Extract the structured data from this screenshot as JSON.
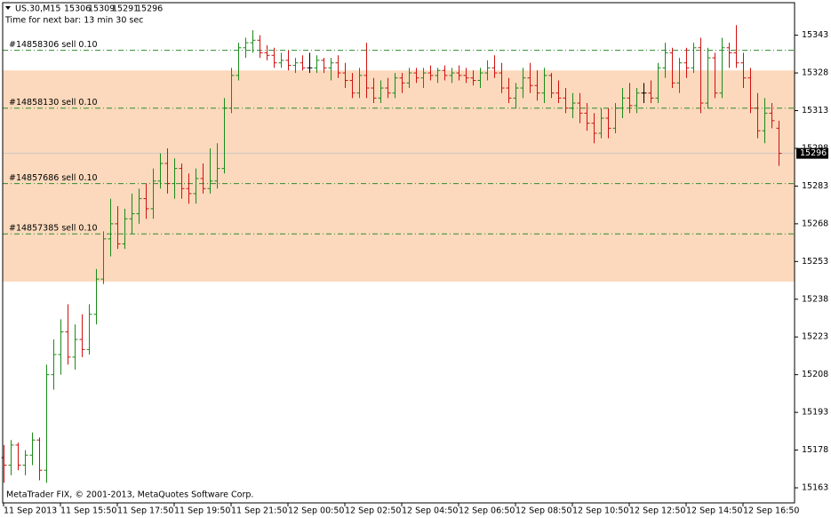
{
  "chart_data": {
    "type": "ohlc",
    "title": "US.30,M15",
    "subtitle": "Time for next bar: 13 min 30 sec",
    "footer": "MetaTrader FIX, © 2001-2013, MetaQuotes Software Corp.",
    "categories": [
      "11 Sep 2013",
      null,
      null,
      null,
      null,
      null,
      null,
      null,
      "11 Sep 15:50",
      null,
      null,
      null,
      null,
      null,
      null,
      null,
      "11 Sep 17:50",
      null,
      null,
      null,
      null,
      null,
      null,
      null,
      "11 Sep 19:50",
      null,
      null,
      null,
      null,
      null,
      null,
      null,
      "11 Sep 21:50",
      null,
      null,
      null,
      null,
      null,
      null,
      null,
      "12 Sep 00:50",
      null,
      null,
      null,
      null,
      null,
      null,
      null,
      "12 Sep 02:50",
      null,
      null,
      null,
      null,
      null,
      null,
      null,
      "12 Sep 04:50",
      null,
      null,
      null,
      null,
      null,
      null,
      null,
      "12 Sep 06:50",
      null,
      null,
      null,
      null,
      null,
      null,
      null,
      "12 Sep 08:50",
      null,
      null,
      null,
      null,
      null,
      null,
      null,
      "12 Sep 10:50",
      null,
      null,
      null,
      null,
      null,
      null,
      null,
      "12 Sep 12:50",
      null,
      null,
      null,
      null,
      null,
      null,
      null,
      "12 Sep 14:50",
      null,
      null,
      null,
      null,
      null,
      null,
      null,
      "12 Sep 16:50",
      null,
      null,
      null,
      null,
      null
    ],
    "values": [
      [
        15175,
        15180,
        15165,
        15172
      ],
      [
        15172,
        15182,
        15168,
        15180
      ],
      [
        15180,
        15181,
        15170,
        15172
      ],
      [
        15172,
        15178,
        15168,
        15176
      ],
      [
        15176,
        15185,
        15172,
        15182
      ],
      [
        15182,
        15183,
        15166,
        15170
      ],
      [
        15170,
        15212,
        15165,
        15208
      ],
      [
        15208,
        15222,
        15202,
        15216
      ],
      [
        15216,
        15230,
        15208,
        15225
      ],
      [
        15225,
        15236,
        15212,
        15215
      ],
      [
        15215,
        15228,
        15210,
        15222
      ],
      [
        15222,
        15232,
        15215,
        15218
      ],
      [
        15218,
        15236,
        15216,
        15232
      ],
      [
        15232,
        15250,
        15228,
        15246
      ],
      [
        15246,
        15265,
        15244,
        15262
      ],
      [
        15262,
        15278,
        15255,
        15268
      ],
      [
        15268,
        15275,
        15258,
        15260
      ],
      [
        15260,
        15274,
        15258,
        15270
      ],
      [
        15270,
        15280,
        15264,
        15272
      ],
      [
        15272,
        15282,
        15268,
        15278
      ],
      [
        15278,
        15284,
        15270,
        15274
      ],
      [
        15274,
        15290,
        15270,
        15285
      ],
      [
        15285,
        15296,
        15282,
        15292
      ],
      [
        15292,
        15298,
        15280,
        15284
      ],
      [
        15284,
        15294,
        15278,
        15290
      ],
      [
        15290,
        15292,
        15278,
        15282
      ],
      [
        15282,
        15288,
        15276,
        15280
      ],
      [
        15280,
        15290,
        15276,
        15286
      ],
      [
        15286,
        15292,
        15280,
        15282
      ],
      [
        15282,
        15298,
        15280,
        15285
      ],
      [
        15285,
        15300,
        15282,
        15290
      ],
      [
        15290,
        15318,
        15288,
        15314
      ],
      [
        15314,
        15330,
        15312,
        15327
      ],
      [
        15327,
        15340,
        15325,
        15338
      ],
      [
        15338,
        15342,
        15334,
        15340
      ],
      [
        15340,
        15345,
        15336,
        15341
      ],
      [
        15341,
        15343,
        15334,
        15336
      ],
      [
        15336,
        15339,
        15333,
        15335
      ],
      [
        15335,
        15338,
        15330,
        15332
      ],
      [
        15332,
        15336,
        15330,
        15333
      ],
      [
        15333,
        15337,
        15329,
        15331
      ],
      [
        15331,
        15334,
        15328,
        15332
      ],
      [
        15332,
        15335,
        15329,
        15330
      ],
      [
        15330,
        15336,
        15328,
        15330
      ],
      [
        15330,
        15335,
        15328,
        15333
      ],
      [
        15333,
        15334,
        15328,
        15330
      ],
      [
        15330,
        15334,
        15325,
        15332
      ],
      [
        15332,
        15335,
        15326,
        15328
      ],
      [
        15328,
        15332,
        15322,
        15325
      ],
      [
        15325,
        15328,
        15318,
        15320
      ],
      [
        15320,
        15330,
        15318,
        15327
      ],
      [
        15327,
        15340,
        15318,
        15322
      ],
      [
        15322,
        15326,
        15316,
        15318
      ],
      [
        15318,
        15325,
        15316,
        15322
      ],
      [
        15322,
        15326,
        15318,
        15320
      ],
      [
        15320,
        15328,
        15318,
        15326
      ],
      [
        15326,
        15328,
        15320,
        15324
      ],
      [
        15324,
        15330,
        15322,
        15328
      ],
      [
        15328,
        15330,
        15324,
        15326
      ],
      [
        15326,
        15330,
        15322,
        15328
      ],
      [
        15328,
        15331,
        15325,
        15327
      ],
      [
        15327,
        15330,
        15324,
        15329
      ],
      [
        15329,
        15331,
        15325,
        15327
      ],
      [
        15327,
        15330,
        15324,
        15328
      ],
      [
        15328,
        15331,
        15325,
        15327
      ],
      [
        15327,
        15330,
        15324,
        15326
      ],
      [
        15326,
        15329,
        15323,
        15325
      ],
      [
        15325,
        15330,
        15322,
        15328
      ],
      [
        15328,
        15333,
        15325,
        15330
      ],
      [
        15330,
        15335,
        15326,
        15328
      ],
      [
        15328,
        15332,
        15320,
        15322
      ],
      [
        15322,
        15326,
        15316,
        15318
      ],
      [
        15318,
        15324,
        15314,
        15322
      ],
      [
        15322,
        15330,
        15318,
        15326
      ],
      [
        15326,
        15332,
        15320,
        15323
      ],
      [
        15323,
        15329,
        15317,
        15320
      ],
      [
        15320,
        15330,
        15316,
        15327
      ],
      [
        15327,
        15328,
        15318,
        15320
      ],
      [
        15320,
        15325,
        15316,
        15318
      ],
      [
        15318,
        15322,
        15312,
        15314
      ],
      [
        15314,
        15320,
        15310,
        15316
      ],
      [
        15316,
        15320,
        15308,
        15312
      ],
      [
        15312,
        15316,
        15305,
        15308
      ],
      [
        15308,
        15312,
        15300,
        15304
      ],
      [
        15304,
        15314,
        15302,
        15310
      ],
      [
        15310,
        15314,
        15302,
        15306
      ],
      [
        15306,
        15316,
        15304,
        15314
      ],
      [
        15314,
        15322,
        15310,
        15318
      ],
      [
        15318,
        15324,
        15312,
        15315
      ],
      [
        15315,
        15322,
        15312,
        15320
      ],
      [
        15320,
        15324,
        15316,
        15320
      ],
      [
        15320,
        15325,
        15316,
        15318
      ],
      [
        15318,
        15332,
        15316,
        15330
      ],
      [
        15330,
        15340,
        15326,
        15336
      ],
      [
        15336,
        15338,
        15322,
        15324
      ],
      [
        15324,
        15334,
        15320,
        15332
      ],
      [
        15332,
        15338,
        15326,
        15330
      ],
      [
        15330,
        15340,
        15328,
        15338
      ],
      [
        15338,
        15342,
        15312,
        15316
      ],
      [
        15316,
        15338,
        15314,
        15334
      ],
      [
        15334,
        15336,
        15318,
        15320
      ],
      [
        15320,
        15342,
        15318,
        15338
      ],
      [
        15338,
        15340,
        15330,
        15336
      ],
      [
        15336,
        15347,
        15330,
        15332
      ],
      [
        15332,
        15336,
        15322,
        15326
      ],
      [
        15326,
        15330,
        15312,
        15314
      ],
      [
        15314,
        15320,
        15302,
        15305
      ],
      [
        15305,
        15318,
        15300,
        15312
      ],
      [
        15312,
        15316,
        15306,
        15309
      ],
      [
        15306,
        15309,
        15291,
        15296
      ]
    ],
    "colors": {
      "up": "#1a8a1a",
      "down": "#d01010",
      "flat": "#000000"
    },
    "ylim": [
      15157,
      15357
    ],
    "yticks": [
      15163,
      15178,
      15193,
      15208,
      15223,
      15238,
      15253,
      15268,
      15283,
      15298,
      15313,
      15328,
      15343
    ],
    "zone": {
      "from": 15245,
      "to": 15329,
      "color": "#fcd9bc"
    },
    "price_line": {
      "value": 15296,
      "color": "#c8c8c8"
    },
    "orders": [
      {
        "label": "#14858306 sell 0.10",
        "value": 15337
      },
      {
        "label": "#14858130 sell 0.10",
        "value": 15314
      },
      {
        "label": "#14857686 sell 0.10",
        "value": 15284
      },
      {
        "label": "#14857385 sell 0.10",
        "value": 15264
      }
    ],
    "order_color": "#2f8a2f"
  }
}
